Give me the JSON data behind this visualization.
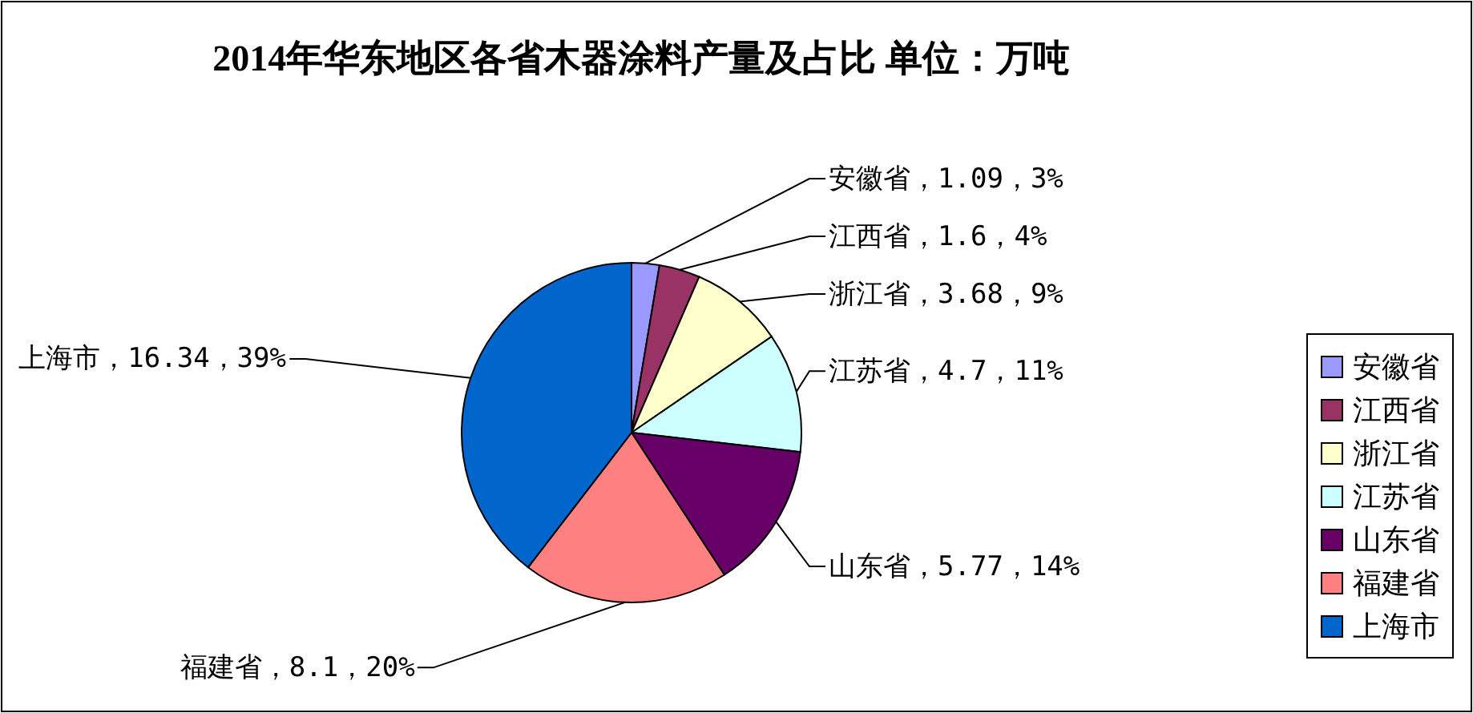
{
  "chart_data": {
    "type": "pie",
    "title": "2014年华东地区各省木器涂料产量及占比 单位：万吨",
    "categories": [
      "安徽省",
      "江西省",
      "浙江省",
      "江苏省",
      "山东省",
      "福建省",
      "上海市"
    ],
    "values": [
      1.09,
      1.6,
      3.68,
      4.7,
      5.77,
      8.1,
      16.34
    ],
    "colors": [
      "#9999ff",
      "#993366",
      "#ffffcc",
      "#ccffff",
      "#660066",
      "#ff8080",
      "#0066cc"
    ],
    "value_labels": [
      "安徽省，1.09，3%",
      "江西省，1.6，4%",
      "浙江省，3.68，9%",
      "江苏省，4.7，11%",
      "山东省，5.77，14%",
      "福建省，8.1，20%",
      "上海市，16.34，39%"
    ],
    "legend": "right"
  }
}
